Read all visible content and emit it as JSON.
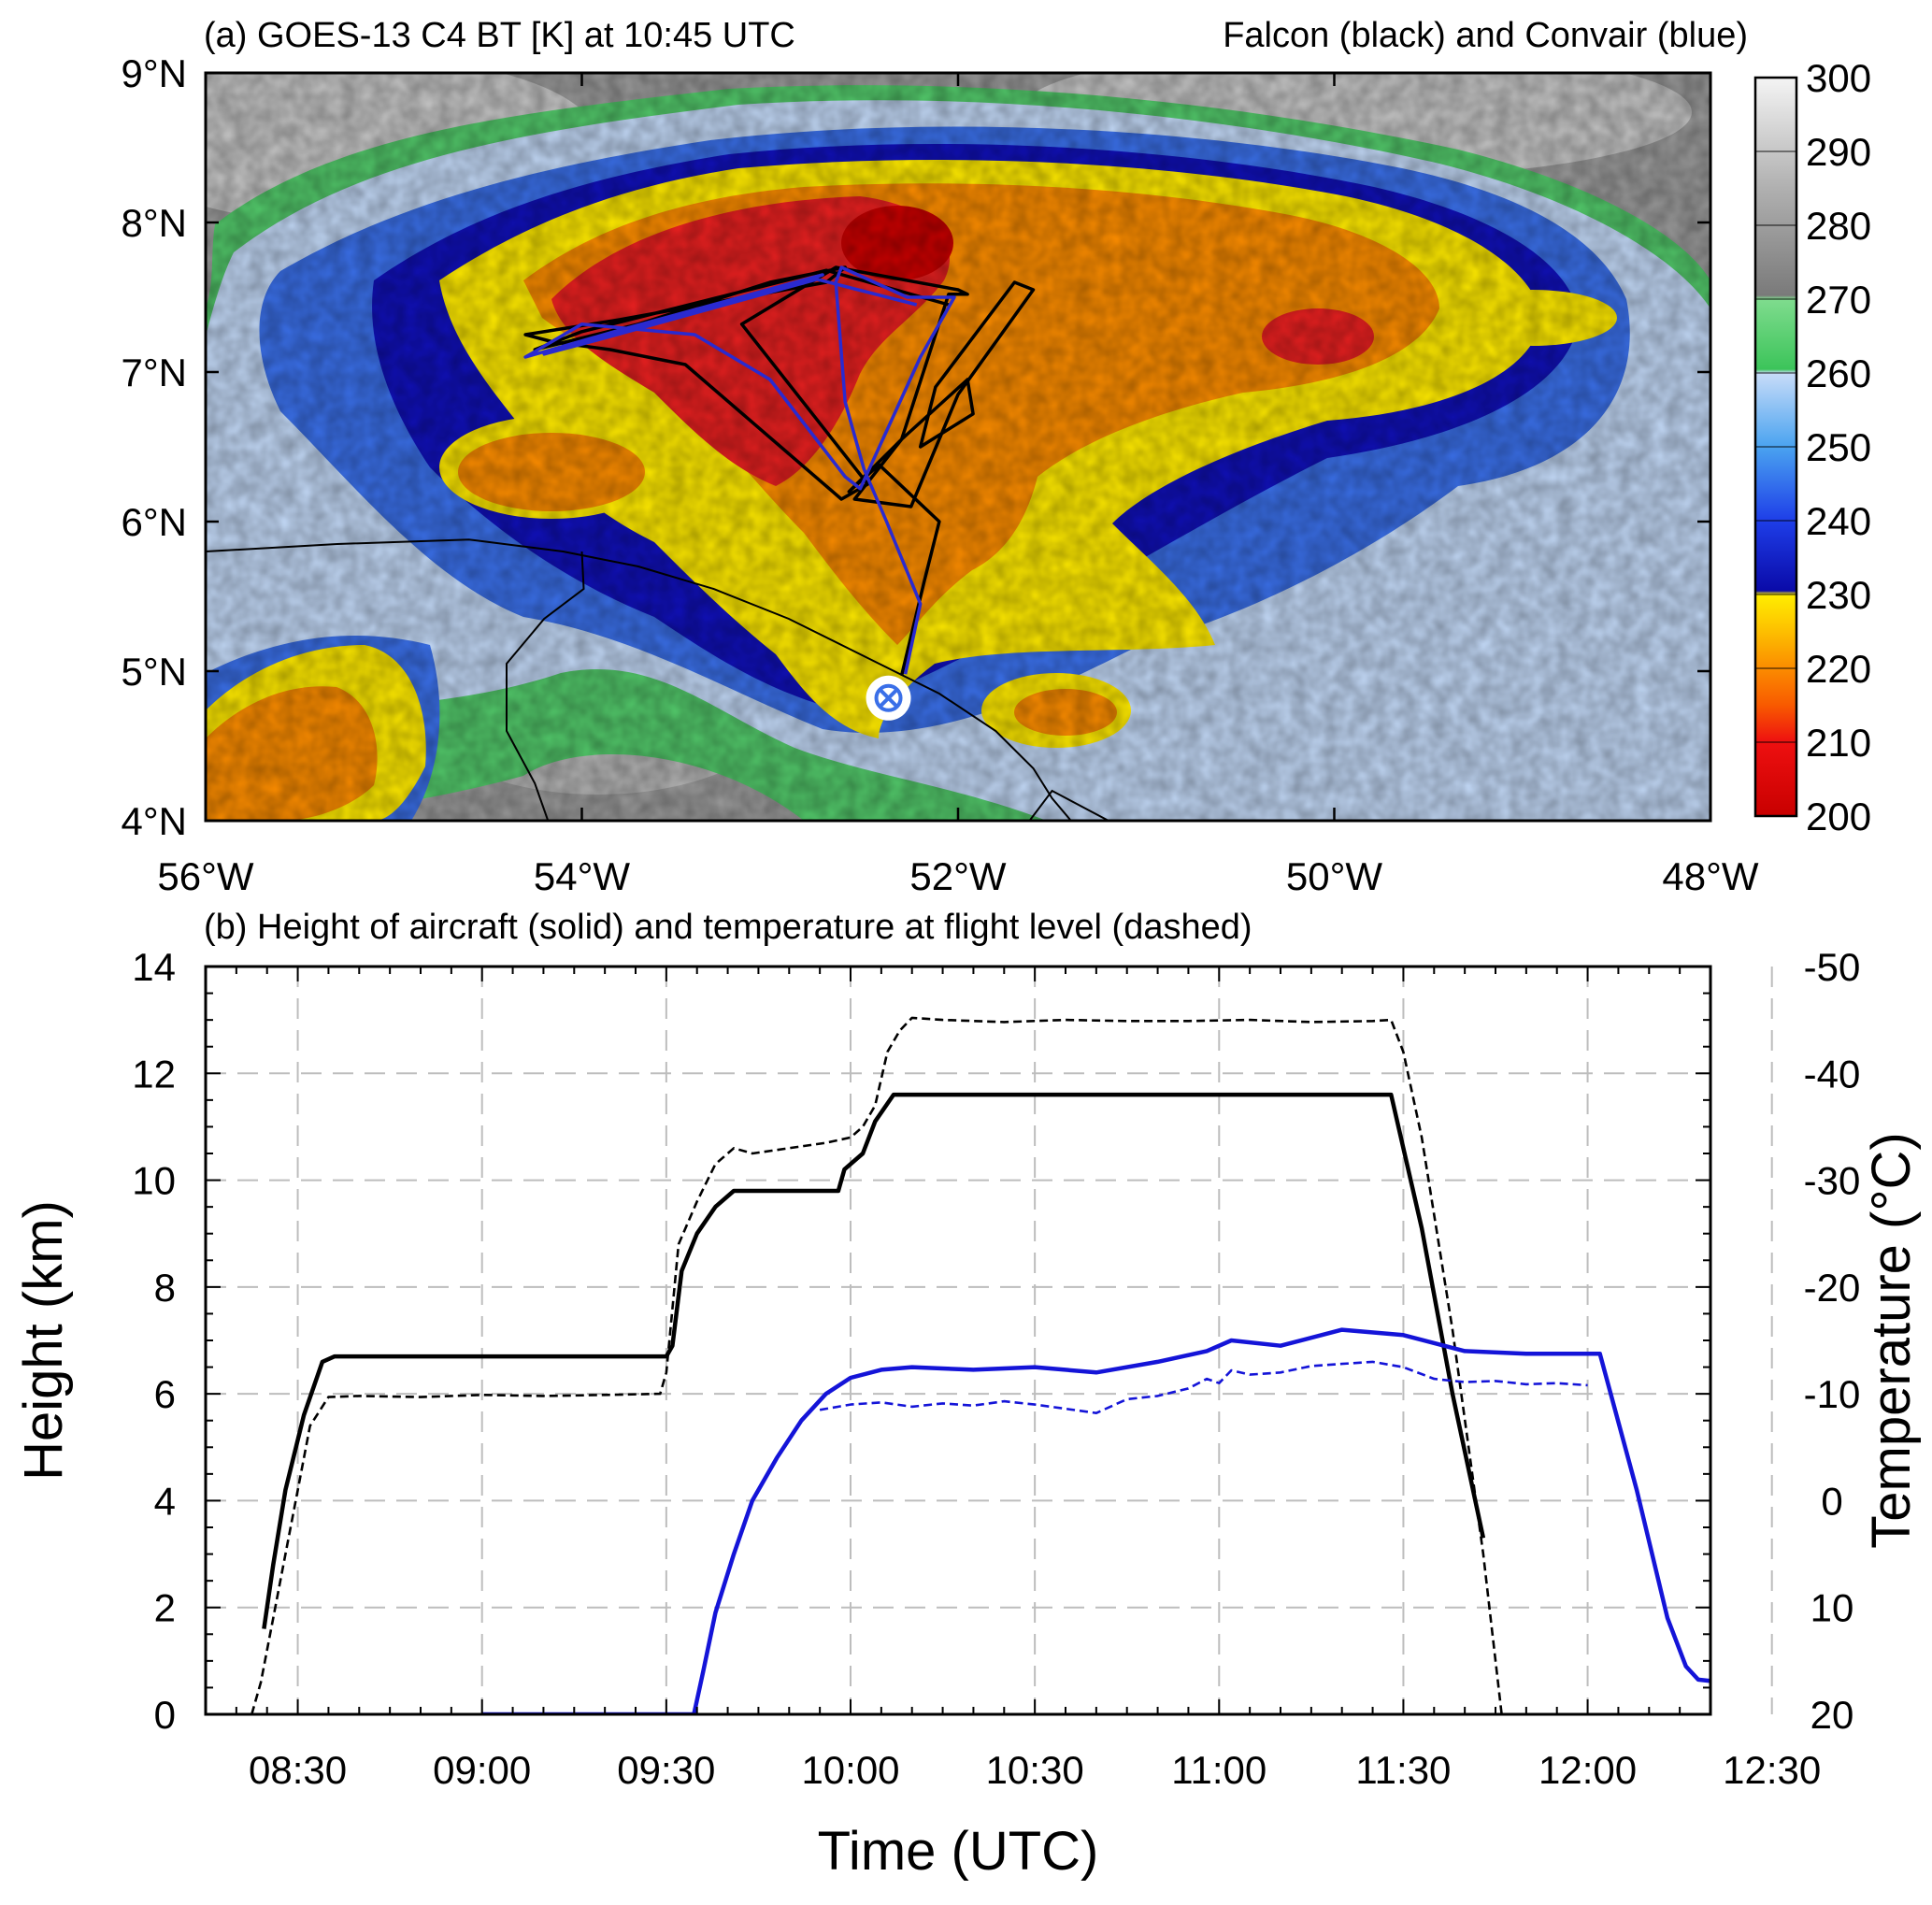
{
  "chart_data": [
    {
      "panel": "a",
      "type": "heatmap",
      "title": "(a) GOES-13 C4 BT [K] at 10:45 UTC",
      "subtitle": "Falcon (black) and Convair (blue)",
      "xlim": [
        -56,
        -48
      ],
      "ylim": [
        4,
        9
      ],
      "x_ticks": [
        {
          "value": -56,
          "label": "56°W"
        },
        {
          "value": -54,
          "label": "54°W"
        },
        {
          "value": -52,
          "label": "52°W"
        },
        {
          "value": -50,
          "label": "50°W"
        },
        {
          "value": -48,
          "label": "48°W"
        }
      ],
      "y_ticks": [
        {
          "value": 4,
          "label": "4°N"
        },
        {
          "value": 5,
          "label": "5°N"
        },
        {
          "value": 6,
          "label": "6°N"
        },
        {
          "value": 7,
          "label": "7°N"
        },
        {
          "value": 8,
          "label": "8°N"
        },
        {
          "value": 9,
          "label": "9°N"
        }
      ],
      "colorbar": {
        "range": [
          200,
          300
        ],
        "ticks": [
          "300",
          "290",
          "280",
          "270",
          "260",
          "250",
          "240",
          "230",
          "220",
          "210",
          "200"
        ],
        "stops": [
          {
            "value": 200,
            "color": "#c80000"
          },
          {
            "value": 210,
            "color": "#ee1010"
          },
          {
            "value": 215,
            "color": "#f85a00"
          },
          {
            "value": 220,
            "color": "#fb8c00"
          },
          {
            "value": 225,
            "color": "#fdbf00"
          },
          {
            "value": 230,
            "color": "#ffee00"
          },
          {
            "value": 230.5,
            "color": "#0a0aa8"
          },
          {
            "value": 240,
            "color": "#1e3ee8"
          },
          {
            "value": 250,
            "color": "#4aa3f0"
          },
          {
            "value": 260,
            "color": "#c8dcf8"
          },
          {
            "value": 260.5,
            "color": "#3cc45a"
          },
          {
            "value": 270,
            "color": "#7fdc8e"
          },
          {
            "value": 270.5,
            "color": "#7a7a7a"
          },
          {
            "value": 285,
            "color": "#b0b0b0"
          },
          {
            "value": 300,
            "color": "#f4f4f4"
          }
        ]
      },
      "airport_marker": {
        "lon": -52.37,
        "lat": 4.82
      },
      "tracks": [
        {
          "color": "#000000",
          "points": [
            [
              -52.3,
              4.97
            ],
            [
              -52.18,
              5.6
            ],
            [
              -52.1,
              6.0
            ],
            [
              -52.42,
              6.38
            ],
            [
              -52.58,
              6.2
            ],
            [
              -52.3,
              6.55
            ],
            [
              -51.95,
              6.95
            ],
            [
              -51.92,
              6.72
            ],
            [
              -52.2,
              6.5
            ],
            [
              -52.12,
              6.9
            ],
            [
              -51.7,
              7.6
            ],
            [
              -51.6,
              7.55
            ],
            [
              -52.0,
              6.85
            ],
            [
              -52.25,
              6.1
            ],
            [
              -52.55,
              6.15
            ],
            [
              -52.3,
              6.55
            ],
            [
              -52.05,
              7.52
            ],
            [
              -51.95,
              7.52
            ],
            [
              -52.0,
              7.55
            ],
            [
              -52.65,
              7.7
            ],
            [
              -53.15,
              7.32
            ],
            [
              -52.48,
              6.25
            ],
            [
              -52.62,
              6.15
            ],
            [
              -53.45,
              7.05
            ],
            [
              -53.85,
              7.15
            ],
            [
              -54.15,
              7.2
            ],
            [
              -54.3,
              7.25
            ],
            [
              -53.8,
              7.35
            ],
            [
              -52.7,
              7.6
            ],
            [
              -52.6,
              7.7
            ],
            [
              -53.0,
              7.6
            ],
            [
              -53.7,
              7.32
            ],
            [
              -54.25,
              7.15
            ],
            [
              -54.0,
              7.27
            ],
            [
              -52.7,
              7.68
            ],
            [
              -52.05,
              7.45
            ]
          ]
        },
        {
          "color": "#2a2ad0",
          "points": [
            [
              -52.28,
              4.98
            ],
            [
              -52.2,
              5.45
            ],
            [
              -52.38,
              6.0
            ],
            [
              -52.5,
              6.35
            ],
            [
              -52.6,
              6.8
            ],
            [
              -52.65,
              7.6
            ],
            [
              -52.62,
              7.7
            ],
            [
              -52.27,
              7.5
            ],
            [
              -52.02,
              7.5
            ],
            [
              -52.2,
              7.1
            ],
            [
              -52.52,
              6.22
            ],
            [
              -52.6,
              6.3
            ],
            [
              -53.0,
              6.95
            ],
            [
              -53.4,
              7.25
            ],
            [
              -54.0,
              7.32
            ],
            [
              -54.3,
              7.1
            ],
            [
              -53.8,
              7.28
            ],
            [
              -52.72,
              7.65
            ],
            [
              -52.95,
              7.55
            ],
            [
              -53.9,
              7.22
            ],
            [
              -54.2,
              7.12
            ],
            [
              -52.75,
              7.62
            ],
            [
              -52.22,
              7.45
            ]
          ]
        }
      ],
      "coastline": [
        [
          [
            -56.0,
            5.8
          ],
          [
            -55.3,
            5.85
          ],
          [
            -54.6,
            5.88
          ],
          [
            -54.1,
            5.8
          ],
          [
            -53.7,
            5.7
          ],
          [
            -53.3,
            5.55
          ],
          [
            -52.9,
            5.35
          ],
          [
            -52.5,
            5.1
          ],
          [
            -52.1,
            4.85
          ],
          [
            -51.8,
            4.6
          ],
          [
            -51.6,
            4.35
          ],
          [
            -51.5,
            4.15
          ],
          [
            -51.4,
            4.0
          ]
        ],
        [
          [
            -54.0,
            5.8
          ],
          [
            -53.99,
            5.55
          ],
          [
            -54.2,
            5.35
          ],
          [
            -54.4,
            5.05
          ],
          [
            -54.4,
            4.6
          ],
          [
            -54.25,
            4.25
          ],
          [
            -54.18,
            4.0
          ]
        ],
        [
          [
            -51.62,
            4.0
          ],
          [
            -51.5,
            4.2
          ],
          [
            -51.2,
            4.0
          ]
        ]
      ]
    },
    {
      "panel": "b",
      "type": "line",
      "title": "(b) Height of aircraft (solid) and temperature at flight level (dashed)",
      "xlabel": "Time (UTC)",
      "ylabel": "Height (km)",
      "y2label": "Temperature (°C)",
      "xlim": [
        -45,
        200
      ],
      "x_unit": "minutes after 09:00",
      "ylim": [
        0,
        14
      ],
      "y2lim": [
        20,
        -50
      ],
      "x_ticks": [
        {
          "value": -30,
          "label": "08:30"
        },
        {
          "value": 0,
          "label": "09:00"
        },
        {
          "value": 30,
          "label": "09:30"
        },
        {
          "value": 60,
          "label": "10:00"
        },
        {
          "value": 90,
          "label": "10:30"
        },
        {
          "value": 120,
          "label": "11:00"
        },
        {
          "value": 150,
          "label": "11:30"
        },
        {
          "value": 180,
          "label": "12:00"
        },
        {
          "value": 210,
          "label": "12:30"
        }
      ],
      "y_ticks": [
        "0",
        "2",
        "4",
        "6",
        "8",
        "10",
        "12",
        "14"
      ],
      "y2_ticks": [
        "20",
        "10",
        "0",
        "-10",
        "-20",
        "-30",
        "-40",
        "-50"
      ],
      "grid": true,
      "series": [
        {
          "style": "solid",
          "color": "#000000",
          "axis": "left",
          "x": [
            -35.5,
            -34,
            -32,
            -29,
            -26,
            -24,
            30,
            31,
            32.5,
            35,
            38,
            41,
            43,
            44,
            58,
            59,
            62,
            64,
            67,
            147,
            148,
            150,
            153,
            158,
            163
          ],
          "y": [
            1.6,
            2.8,
            4.2,
            5.6,
            6.6,
            6.7,
            6.7,
            6.9,
            8.3,
            9.0,
            9.5,
            9.8,
            9.8,
            9.8,
            9.8,
            10.2,
            10.5,
            11.1,
            11.6,
            11.6,
            11.6,
            10.6,
            9.1,
            6.0,
            3.3
          ]
        },
        {
          "style": "dashed",
          "color": "#000000",
          "axis": "right",
          "x": [
            -37.5,
            -36,
            -34,
            -32,
            -30,
            -28,
            -25,
            -20,
            -10,
            0,
            10,
            20,
            29,
            30,
            32,
            35,
            38,
            41,
            44,
            50,
            56,
            60,
            62,
            64,
            66,
            68,
            70,
            75,
            85,
            95,
            105,
            115,
            125,
            135,
            145,
            148,
            150,
            153,
            158,
            163,
            166
          ],
          "y": [
            20,
            17,
            11,
            5,
            -1,
            -7,
            -9.7,
            -9.8,
            -9.7,
            -9.9,
            -9.8,
            -9.9,
            -10,
            -12,
            -24,
            -28,
            -31.5,
            -33,
            -32.5,
            -33,
            -33.5,
            -34,
            -35,
            -37,
            -42,
            -44,
            -45.2,
            -45,
            -44.8,
            -45,
            -44.9,
            -44.9,
            -45,
            -44.8,
            -44.9,
            -45,
            -42,
            -34,
            -16,
            5,
            20
          ]
        },
        {
          "style": "solid",
          "color": "#1414d8",
          "axis": "left",
          "x": [
            0,
            34.5,
            36,
            38,
            41,
            44,
            48,
            52,
            56,
            60,
            65,
            70,
            80,
            90,
            100,
            110,
            118,
            122,
            130,
            140,
            150,
            160,
            170,
            180,
            182,
            188,
            193,
            196,
            198,
            202,
            205
          ],
          "y": [
            0,
            0,
            0.8,
            1.9,
            3.0,
            4.0,
            4.8,
            5.5,
            6.0,
            6.3,
            6.45,
            6.5,
            6.45,
            6.5,
            6.4,
            6.6,
            6.8,
            7.0,
            6.9,
            7.2,
            7.1,
            6.8,
            6.75,
            6.75,
            6.75,
            4.2,
            1.8,
            0.9,
            0.65,
            0.6,
            0
          ]
        },
        {
          "style": "dashed",
          "color": "#1414d8",
          "axis": "right",
          "x": [
            55,
            60,
            65,
            70,
            75,
            80,
            85,
            90,
            95,
            100,
            105,
            110,
            115,
            118,
            120,
            122,
            125,
            130,
            135,
            140,
            145,
            150,
            155,
            160,
            165,
            170,
            175,
            180
          ],
          "y": [
            -8.5,
            -9,
            -9.2,
            -8.8,
            -9.1,
            -8.9,
            -9.3,
            -9.0,
            -8.6,
            -8.2,
            -9.5,
            -9.8,
            -10.5,
            -11.4,
            -11.0,
            -12.2,
            -11.8,
            -12.0,
            -12.6,
            -12.8,
            -13.0,
            -12.5,
            -11.4,
            -11.1,
            -11.2,
            -10.9,
            -11.0,
            -10.8
          ]
        }
      ]
    }
  ]
}
